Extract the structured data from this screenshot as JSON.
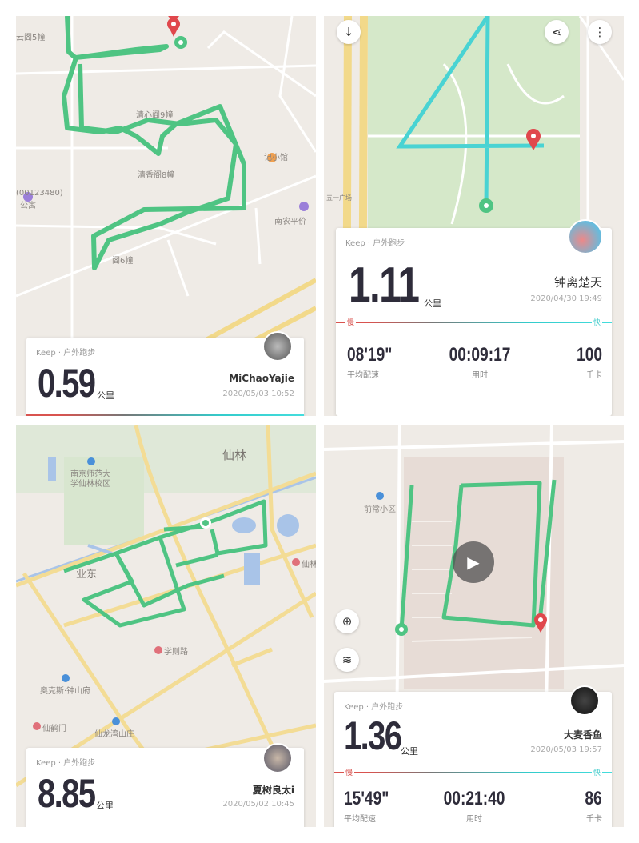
{
  "colors": {
    "route_green": "#4fc483",
    "route_cyan": "#49d3d3",
    "pin_red": "#e0474c",
    "pace_slow": "#d9534f",
    "pace_fast": "#44cccc"
  },
  "panels": [
    {
      "map_labels": [
        "云阁5幢",
        "清心阁9幢",
        "记小馆",
        "清香阁8幢",
        "(00123480)",
        "公寓",
        "南农平价",
        "阁6幢"
      ],
      "card": {
        "brand": "Keep · 户外跑步",
        "distance": "0.59",
        "unit": "公里",
        "user": "MiChaoYajie",
        "date": "2020/05/03 10:52"
      }
    },
    {
      "map_labels": [
        "五一广场"
      ],
      "buttons": {
        "download": "download-icon",
        "share": "share-icon",
        "more": "more-icon"
      },
      "card": {
        "brand": "Keep · 户外跑步",
        "distance": "1.11",
        "unit": "公里",
        "user": "钟离楚天",
        "date": "2020/04/30 19:49",
        "slow": "慢",
        "fast": "快",
        "stats": [
          {
            "value": "08'19\"",
            "label": "平均配速"
          },
          {
            "value": "00:09:17",
            "label": "用时"
          },
          {
            "value": "100",
            "label": "千卡"
          }
        ]
      }
    },
    {
      "map_labels": [
        "仙林",
        "南京师范大",
        "学仙林校区",
        "业东",
        "学则路",
        "奥克斯·钟山府",
        "仙鹤门",
        "仙龙湾山庄",
        "仙林"
      ],
      "card": {
        "brand": "Keep · 户外跑步",
        "distance": "8.85",
        "unit": "公里",
        "user": "夏树良太i",
        "date": "2020/05/02 10:45"
      }
    },
    {
      "map_labels": [
        "前常小区"
      ],
      "card": {
        "brand": "Keep · 户外跑步",
        "distance": "1.36",
        "unit": "公里",
        "user": "大麦香鱼",
        "date": "2020/05/03 19:57",
        "slow": "慢",
        "fast": "快",
        "stats": [
          {
            "value": "15'49\"",
            "label": "平均配速"
          },
          {
            "value": "00:21:40",
            "label": "用时"
          },
          {
            "value": "86",
            "label": "千卡"
          }
        ]
      }
    }
  ]
}
